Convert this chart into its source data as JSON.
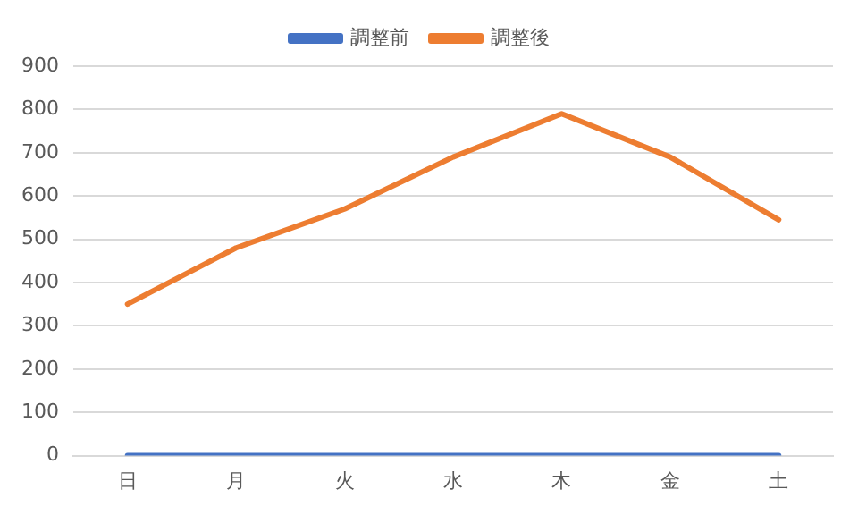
{
  "chart_data": {
    "type": "line",
    "categories": [
      "日",
      "月",
      "火",
      "水",
      "木",
      "金",
      "土"
    ],
    "series": [
      {
        "name": "調整前",
        "color": "#4472c4",
        "values": [
          0,
          0,
          0,
          0,
          0,
          0,
          0
        ]
      },
      {
        "name": "調整後",
        "color": "#ed7d31",
        "values": [
          350,
          480,
          570,
          690,
          790,
          690,
          545
        ]
      }
    ],
    "ylim": [
      0,
      900
    ],
    "yticks": [
      0,
      100,
      200,
      300,
      400,
      500,
      600,
      700,
      800,
      900
    ],
    "grid": "y",
    "legend": "top",
    "marker": "none",
    "line_style": "solid"
  }
}
